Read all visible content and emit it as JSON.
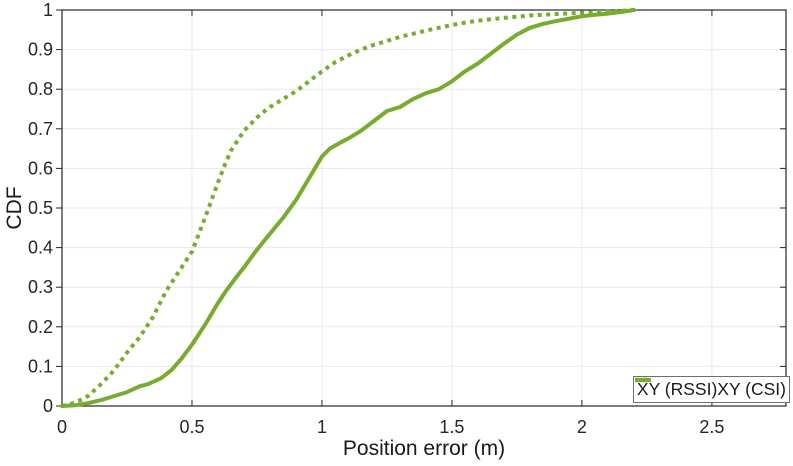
{
  "chart_data": {
    "type": "line",
    "title": "",
    "xlabel": "Position error (m)",
    "ylabel": "CDF",
    "xlim": [
      0,
      2.785
    ],
    "ylim": [
      0,
      1
    ],
    "grid": true,
    "x_tick_values": [
      0,
      0.5,
      1,
      1.5,
      2,
      2.5
    ],
    "x_tick_labels": [
      "0",
      "0.5",
      "1",
      "1.5",
      "2",
      "2.5"
    ],
    "y_tick_values": [
      0,
      0.1,
      0.2,
      0.3,
      0.4,
      0.5,
      0.6,
      0.7,
      0.8,
      0.9,
      1
    ],
    "y_tick_labels": [
      "0",
      "0.1",
      "0.2",
      "0.3",
      "0.4",
      "0.5",
      "0.6",
      "0.7",
      "0.8",
      "0.9",
      "1"
    ],
    "accent_color": "#77ac30",
    "grid_color": "#e8e8e8",
    "axis_color": "#262626",
    "legend": {
      "position": "bottom-right"
    },
    "series": [
      {
        "name": "XY (RSSI)",
        "style": "solid",
        "color": "#77ac30",
        "points": [
          [
            0,
            0
          ],
          [
            0.05,
            0.002
          ],
          [
            0.1,
            0.007
          ],
          [
            0.15,
            0.015
          ],
          [
            0.2,
            0.025
          ],
          [
            0.25,
            0.035
          ],
          [
            0.3,
            0.05
          ],
          [
            0.33,
            0.055
          ],
          [
            0.38,
            0.07
          ],
          [
            0.42,
            0.09
          ],
          [
            0.46,
            0.12
          ],
          [
            0.5,
            0.155
          ],
          [
            0.55,
            0.205
          ],
          [
            0.6,
            0.26
          ],
          [
            0.63,
            0.29
          ],
          [
            0.67,
            0.325
          ],
          [
            0.7,
            0.35
          ],
          [
            0.75,
            0.395
          ],
          [
            0.8,
            0.435
          ],
          [
            0.85,
            0.475
          ],
          [
            0.9,
            0.52
          ],
          [
            0.95,
            0.575
          ],
          [
            1.0,
            0.63
          ],
          [
            1.03,
            0.65
          ],
          [
            1.07,
            0.665
          ],
          [
            1.1,
            0.675
          ],
          [
            1.15,
            0.695
          ],
          [
            1.2,
            0.72
          ],
          [
            1.25,
            0.745
          ],
          [
            1.3,
            0.755
          ],
          [
            1.35,
            0.775
          ],
          [
            1.4,
            0.79
          ],
          [
            1.45,
            0.8
          ],
          [
            1.5,
            0.82
          ],
          [
            1.55,
            0.845
          ],
          [
            1.6,
            0.865
          ],
          [
            1.65,
            0.89
          ],
          [
            1.7,
            0.915
          ],
          [
            1.75,
            0.938
          ],
          [
            1.8,
            0.955
          ],
          [
            1.85,
            0.965
          ],
          [
            1.9,
            0.972
          ],
          [
            1.95,
            0.978
          ],
          [
            2.0,
            0.984
          ],
          [
            2.05,
            0.988
          ],
          [
            2.1,
            0.991
          ],
          [
            2.15,
            0.995
          ],
          [
            2.2,
            1.0
          ]
        ]
      },
      {
        "name": "XY (CSI)",
        "style": "dotted",
        "color": "#77ac30",
        "points": [
          [
            0,
            0
          ],
          [
            0.05,
            0.008
          ],
          [
            0.1,
            0.025
          ],
          [
            0.15,
            0.055
          ],
          [
            0.2,
            0.09
          ],
          [
            0.25,
            0.135
          ],
          [
            0.3,
            0.175
          ],
          [
            0.35,
            0.225
          ],
          [
            0.4,
            0.29
          ],
          [
            0.45,
            0.34
          ],
          [
            0.5,
            0.39
          ],
          [
            0.55,
            0.475
          ],
          [
            0.6,
            0.565
          ],
          [
            0.63,
            0.615
          ],
          [
            0.65,
            0.645
          ],
          [
            0.68,
            0.675
          ],
          [
            0.7,
            0.695
          ],
          [
            0.73,
            0.715
          ],
          [
            0.76,
            0.735
          ],
          [
            0.8,
            0.755
          ],
          [
            0.85,
            0.775
          ],
          [
            0.9,
            0.795
          ],
          [
            0.95,
            0.82
          ],
          [
            1.0,
            0.845
          ],
          [
            1.05,
            0.868
          ],
          [
            1.1,
            0.885
          ],
          [
            1.15,
            0.9
          ],
          [
            1.2,
            0.912
          ],
          [
            1.25,
            0.922
          ],
          [
            1.3,
            0.932
          ],
          [
            1.35,
            0.94
          ],
          [
            1.4,
            0.948
          ],
          [
            1.45,
            0.955
          ],
          [
            1.5,
            0.962
          ],
          [
            1.55,
            0.968
          ],
          [
            1.6,
            0.973
          ],
          [
            1.7,
            0.98
          ],
          [
            1.8,
            0.986
          ],
          [
            1.9,
            0.99
          ],
          [
            2.0,
            0.993
          ],
          [
            2.1,
            0.996
          ],
          [
            2.2,
            1.0
          ]
        ]
      }
    ]
  }
}
